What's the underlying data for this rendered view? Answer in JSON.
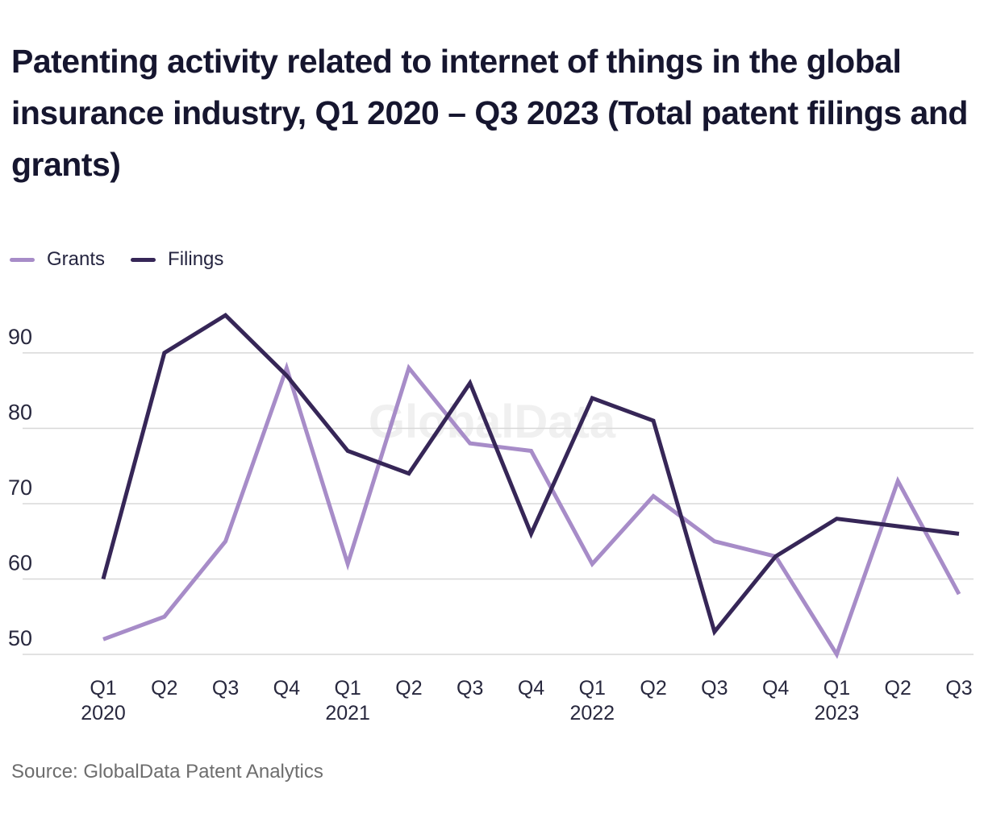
{
  "title": "Patenting activity related to internet of things in the global insurance industry, Q1 2020 – Q3 2023 (Total patent filings and grants)",
  "source": "Source: GlobalData Patent Analytics",
  "legend": {
    "items": [
      {
        "label": "Grants"
      },
      {
        "label": "Filings"
      }
    ]
  },
  "colors": {
    "grants_line": "#a78cc8",
    "filings_line": "#362657",
    "title_text": "#16162f",
    "tick_text": "#28283e",
    "gridline": "#d8d8d8",
    "source_text": "#6d6d6d",
    "watermark_text": "#f0f0f0",
    "background": "#ffffff"
  },
  "chart_data": {
    "type": "line",
    "title": "Patenting activity related to internet of things in the global insurance industry, Q1 2020 – Q3 2023 (Total patent filings and grants)",
    "xlabel": "",
    "ylabel": "",
    "watermark": "GlobalData",
    "grid": true,
    "legend_position": "top-left",
    "ylim": [
      48,
      97
    ],
    "y_ticks": [
      50,
      60,
      70,
      80,
      90
    ],
    "categories": [
      "Q1 2020",
      "Q2 2020",
      "Q3 2020",
      "Q4 2020",
      "Q1 2021",
      "Q2 2021",
      "Q3 2021",
      "Q4 2021",
      "Q1 2022",
      "Q2 2022",
      "Q3 2022",
      "Q4 2022",
      "Q1 2023",
      "Q2 2023",
      "Q3 2023"
    ],
    "x_ticks": [
      {
        "q": "Q1",
        "year": "2020"
      },
      {
        "q": "Q2"
      },
      {
        "q": "Q3"
      },
      {
        "q": "Q4"
      },
      {
        "q": "Q1",
        "year": "2021"
      },
      {
        "q": "Q2"
      },
      {
        "q": "Q3"
      },
      {
        "q": "Q4"
      },
      {
        "q": "Q1",
        "year": "2022"
      },
      {
        "q": "Q2"
      },
      {
        "q": "Q3"
      },
      {
        "q": "Q4"
      },
      {
        "q": "Q1",
        "year": "2023"
      },
      {
        "q": "Q2"
      },
      {
        "q": "Q3"
      }
    ],
    "series": [
      {
        "name": "Grants",
        "color": "#a78cc8",
        "values": [
          52,
          55,
          65,
          88,
          62,
          88,
          78,
          77,
          62,
          71,
          65,
          63,
          50,
          73,
          58
        ]
      },
      {
        "name": "Filings",
        "color": "#362657",
        "values": [
          60,
          90,
          95,
          87,
          77,
          74,
          86,
          66,
          84,
          81,
          53,
          63,
          68,
          67,
          66
        ]
      }
    ]
  }
}
